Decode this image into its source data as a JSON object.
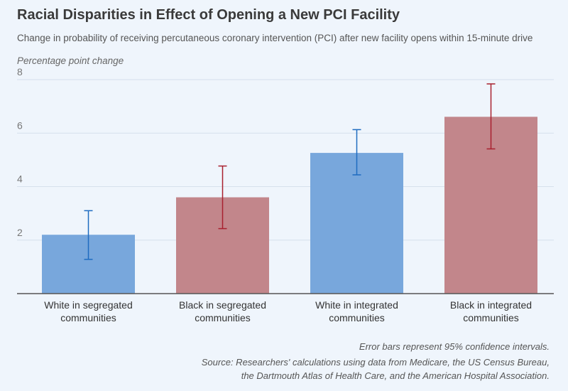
{
  "chart_data": {
    "type": "bar",
    "title": "Racial Disparities in Effect of Opening a New PCI Facility",
    "subtitle": "Change in probability of receiving percutaneous coronary intervention (PCI) after new facility opens within 15-minute drive",
    "ylabel": "Percentage point change",
    "xlabel": "",
    "ylim": [
      0,
      8
    ],
    "yticks": [
      "2",
      "4",
      "6",
      "8"
    ],
    "grid": true,
    "categories": [
      [
        "White in segregated",
        "communities"
      ],
      [
        "Black in segregated",
        "communities"
      ],
      [
        "White in integrated",
        "communities"
      ],
      [
        "Black in integrated",
        "communities"
      ]
    ],
    "values": [
      2.2,
      3.6,
      5.26,
      6.61
    ],
    "ci_low": [
      1.28,
      2.43,
      4.44,
      5.41
    ],
    "ci_high": [
      3.1,
      4.77,
      6.13,
      7.84
    ],
    "bar_colors": [
      "#78a7dc",
      "#c2868b",
      "#78a7dc",
      "#c2868b"
    ],
    "error_colors": [
      "#1f6cc0",
      "#a8202f",
      "#1f6cc0",
      "#a8202f"
    ]
  },
  "notes": {
    "error_bars": "Error bars represent 95% confidence intervals.",
    "source_lines": [
      "Source: Researchers' calculations using data from Medicare, the US Census Bureau,",
      "the Dartmouth Atlas of Health Care, and the American Hospital Association."
    ]
  }
}
